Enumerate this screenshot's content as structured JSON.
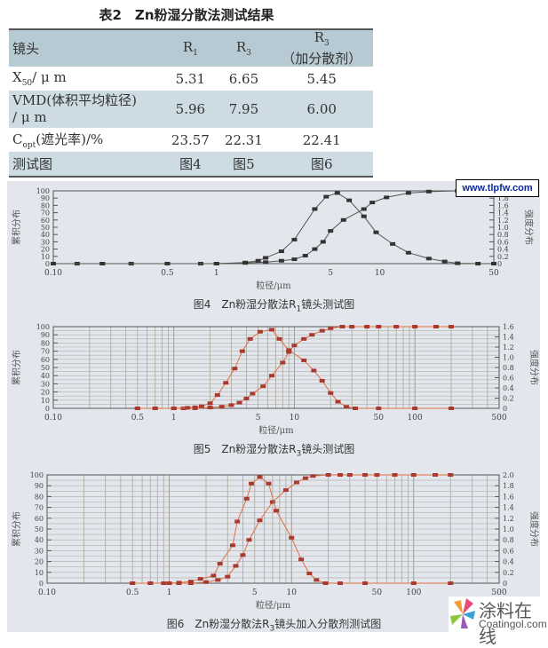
{
  "table": {
    "title": "表2　Zn粉湿分散法测试结果",
    "header": {
      "label": "镜头",
      "c1_main": "R",
      "c1_sub": "1",
      "c2_main": "R",
      "c2_sub": "3",
      "c3_main": "R",
      "c3_sub": "3",
      "c3_note": "（加分散剂）"
    },
    "rows": [
      {
        "label_main": "X",
        "label_sub": "50",
        "label_rest": "/ μ m",
        "values": [
          "5.31",
          "6.65",
          "5.45"
        ]
      },
      {
        "label_main": "VMD(体积平均粒径)",
        "label_rest": "/ μ m",
        "values": [
          "5.96",
          "7.95",
          "6.00"
        ]
      },
      {
        "label_main": "C",
        "label_sub": "opt",
        "label_rest": "(遮光率)/%",
        "values": [
          "23.57",
          "22.31",
          "22.41"
        ]
      },
      {
        "label_main": "测试图",
        "values": [
          "图4",
          "图5",
          "图6"
        ]
      }
    ]
  },
  "watermark": "www.tlpfw.com",
  "logo": {
    "cn": "涂料在线",
    "en": "Coatingol.com"
  },
  "chart_data": [
    {
      "type": "line",
      "caption_main": "图4　Zn粉湿分散法R",
      "caption_sub": "1",
      "caption_rest": "镜头测试图",
      "xlabel": "粒径/μm",
      "ylabel": "累积分布",
      "y2label": "强度分布",
      "xscale": "log",
      "xlim": [
        0.1,
        50
      ],
      "xticks": [
        "0.10",
        "0.5",
        "1",
        "5",
        "10",
        "50"
      ],
      "ylim": [
        0,
        100
      ],
      "yticks": [
        "0",
        "10",
        "20",
        "30",
        "40",
        "50",
        "60",
        "70",
        "80",
        "90",
        "100"
      ],
      "y2lim": [
        0,
        2.0
      ],
      "y2ticks": [
        "0",
        "0.2",
        "0.4",
        "0.6",
        "0.8",
        "1.0",
        "1.2",
        "1.4",
        "1.6",
        "1.8"
      ],
      "grid": false,
      "line_color": "#555555",
      "marker_color": "#333333",
      "series": [
        {
          "axis": "left",
          "x": [
            0.1,
            0.14,
            0.2,
            0.3,
            0.5,
            0.8,
            1,
            1.5,
            2,
            2.5,
            3,
            3.5,
            4,
            4.5,
            5,
            6,
            8,
            9,
            11,
            15,
            20,
            30,
            50
          ],
          "y": [
            0,
            0,
            0,
            0,
            0,
            0,
            0,
            1,
            2,
            4,
            6,
            11,
            20,
            30,
            45,
            60,
            75,
            84,
            91,
            97,
            99,
            100,
            100
          ]
        },
        {
          "axis": "right",
          "x": [
            0.1,
            0.2,
            0.5,
            1,
            1.5,
            1.8,
            2,
            2.5,
            3,
            4,
            4.7,
            5.5,
            6.5,
            8,
            9.5,
            12,
            15,
            20,
            25,
            30,
            40,
            50
          ],
          "y": [
            0,
            0,
            0,
            0,
            0.03,
            0.08,
            0.16,
            0.34,
            0.66,
            1.5,
            1.84,
            1.94,
            1.74,
            1.3,
            0.86,
            0.54,
            0.3,
            0.14,
            0.06,
            0.01,
            0,
            0
          ]
        }
      ]
    },
    {
      "type": "line",
      "caption_main": "图5　Zn粉湿分散法R",
      "caption_sub": "3",
      "caption_rest": "镜头测试图",
      "xlabel": "粒径/μm",
      "ylabel": "累积分布",
      "y2label": "强度分布",
      "xscale": "log",
      "xlim": [
        0.1,
        500
      ],
      "xticks": [
        "0.10",
        "0.5",
        "1",
        "5",
        "10",
        "50",
        "100",
        "500"
      ],
      "ylim": [
        0,
        100
      ],
      "yticks": [
        "0",
        "10",
        "20",
        "30",
        "40",
        "50",
        "60",
        "70",
        "80",
        "90",
        "100"
      ],
      "y2lim": [
        0,
        1.6
      ],
      "y2ticks": [
        "0",
        "0.2",
        "0.4",
        "0.6",
        "0.8",
        "1.0",
        "1.2",
        "1.4",
        "1.6"
      ],
      "grid": true,
      "line_color": "#e07040",
      "marker_color": "#a83a30",
      "series": [
        {
          "axis": "left",
          "x": [
            0.5,
            0.7,
            1,
            1.2,
            1.5,
            2,
            2.5,
            3,
            3.5,
            4,
            4.5,
            5.5,
            6.5,
            8,
            9,
            10,
            12,
            14,
            17,
            20,
            25,
            30,
            40,
            50,
            70,
            100,
            150,
            200
          ],
          "y": [
            0,
            0,
            0,
            0,
            0,
            1,
            2,
            4,
            7,
            12,
            18,
            27,
            40,
            56,
            69,
            77,
            85,
            90,
            95,
            98,
            100,
            100,
            100,
            100,
            100,
            100,
            100,
            100
          ]
        },
        {
          "axis": "right",
          "x": [
            0.5,
            0.7,
            1,
            1.3,
            1.5,
            1.7,
            2,
            2.3,
            2.7,
            3.2,
            3.7,
            4.3,
            5.2,
            6.5,
            7.5,
            9,
            12,
            14.5,
            17,
            20,
            23,
            27,
            32,
            50,
            100,
            200
          ],
          "y": [
            0,
            0,
            0,
            0.01,
            0.02,
            0.04,
            0.1,
            0.26,
            0.5,
            0.78,
            1.12,
            1.36,
            1.5,
            1.54,
            1.36,
            1.14,
            0.94,
            0.74,
            0.54,
            0.3,
            0.13,
            0.03,
            0,
            0,
            0,
            0
          ]
        }
      ]
    },
    {
      "type": "line",
      "caption_main": "图6　Zn粉湿分散法R",
      "caption_sub": "3",
      "caption_rest": "镜头加入分散剂测试图",
      "xlabel": "粒径/μm",
      "ylabel": "累积分布",
      "y2label": "强度分布",
      "xscale": "log",
      "xlim": [
        0.1,
        500
      ],
      "xticks": [
        "0.10",
        "0.5",
        "1",
        "5",
        "10",
        "50",
        "100",
        "500"
      ],
      "ylim": [
        0,
        100
      ],
      "yticks": [
        "0",
        "10",
        "20",
        "30",
        "40",
        "50",
        "60",
        "70",
        "80",
        "90",
        "100"
      ],
      "y2lim": [
        0,
        2.0
      ],
      "y2ticks": [
        "0",
        "0.2",
        "0.4",
        "0.6",
        "0.8",
        "1.0",
        "1.2",
        "1.4",
        "1.6",
        "1.8",
        "2.0"
      ],
      "grid": true,
      "line_color": "#e07040",
      "marker_color": "#a83a30",
      "series": [
        {
          "axis": "left",
          "x": [
            0.5,
            0.7,
            1,
            1.2,
            1.5,
            2,
            2.5,
            3,
            3.5,
            4,
            4.5,
            5.5,
            7,
            9,
            11,
            13,
            15,
            20,
            25,
            30,
            40,
            50,
            70,
            100,
            150,
            200
          ],
          "y": [
            0,
            0,
            0,
            0,
            0,
            1,
            3,
            6,
            16,
            26,
            40,
            58,
            75,
            86,
            93,
            97,
            99,
            100,
            100,
            100,
            100,
            100,
            100,
            100,
            100,
            100
          ]
        },
        {
          "axis": "right",
          "x": [
            0.5,
            0.7,
            0.9,
            1,
            1.2,
            1.5,
            1.8,
            2.3,
            2.6,
            3.3,
            3.6,
            4.3,
            4.7,
            5.5,
            6.5,
            7.5,
            10,
            12,
            14,
            16,
            19,
            25,
            40,
            100,
            200
          ],
          "y": [
            0,
            0,
            0,
            0,
            0.01,
            0.03,
            0.08,
            0.14,
            0.36,
            0.7,
            1.14,
            1.56,
            1.84,
            1.96,
            1.84,
            1.34,
            0.84,
            0.44,
            0.18,
            0.06,
            0,
            0,
            0,
            0,
            0
          ]
        }
      ]
    }
  ]
}
